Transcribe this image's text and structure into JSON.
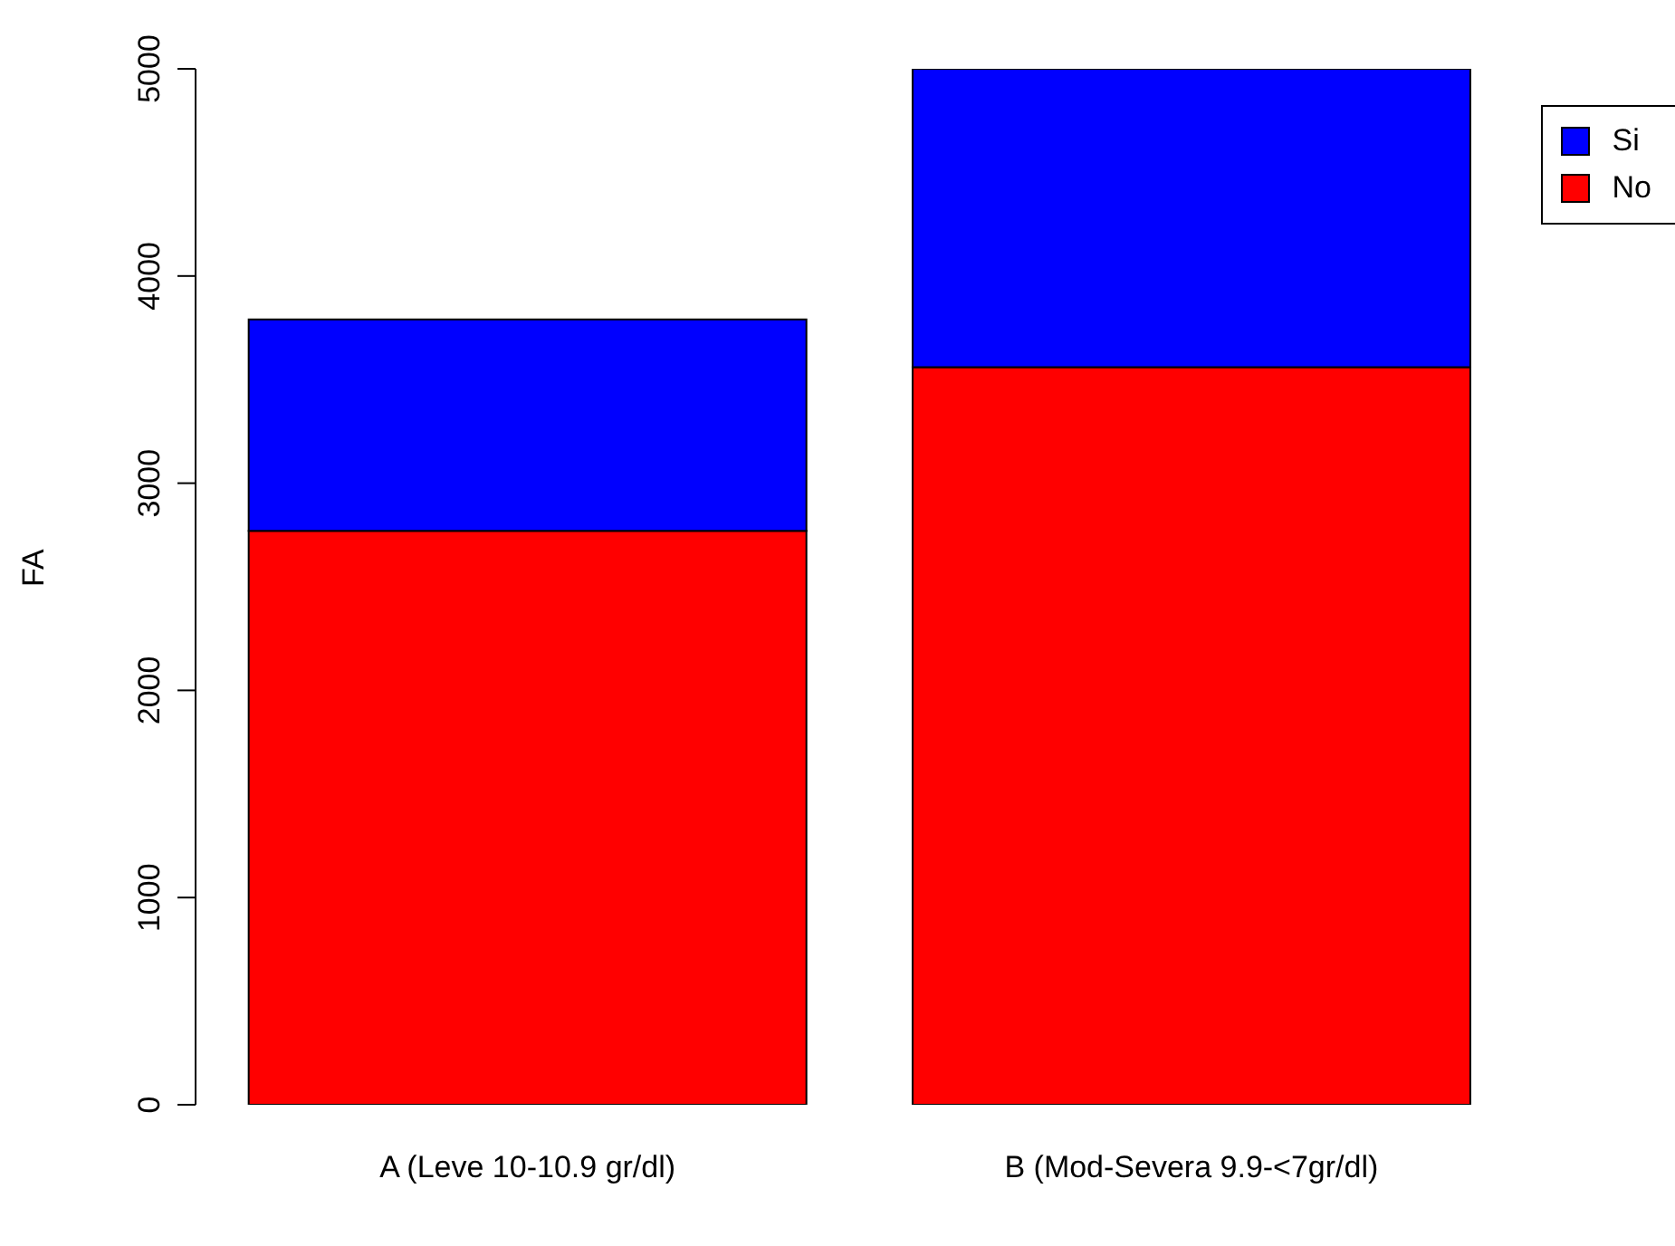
{
  "chart_data": {
    "type": "bar",
    "ylabel": "FA",
    "categories": [
      "A (Leve 10-10.9 gr/dl)",
      "B  (Mod-Severa 9.9-<7gr/dl)"
    ],
    "series": [
      {
        "name": "No",
        "color": "#ff0000",
        "values": [
          2770,
          3560
        ]
      },
      {
        "name": "Si",
        "color": "#0000ff",
        "values": [
          1020,
          1440
        ]
      }
    ],
    "stacked": true,
    "ylim": [
      0,
      5000
    ],
    "yticks": [
      0,
      1000,
      2000,
      3000,
      4000,
      5000
    ],
    "grid": false,
    "legend": "top right"
  }
}
